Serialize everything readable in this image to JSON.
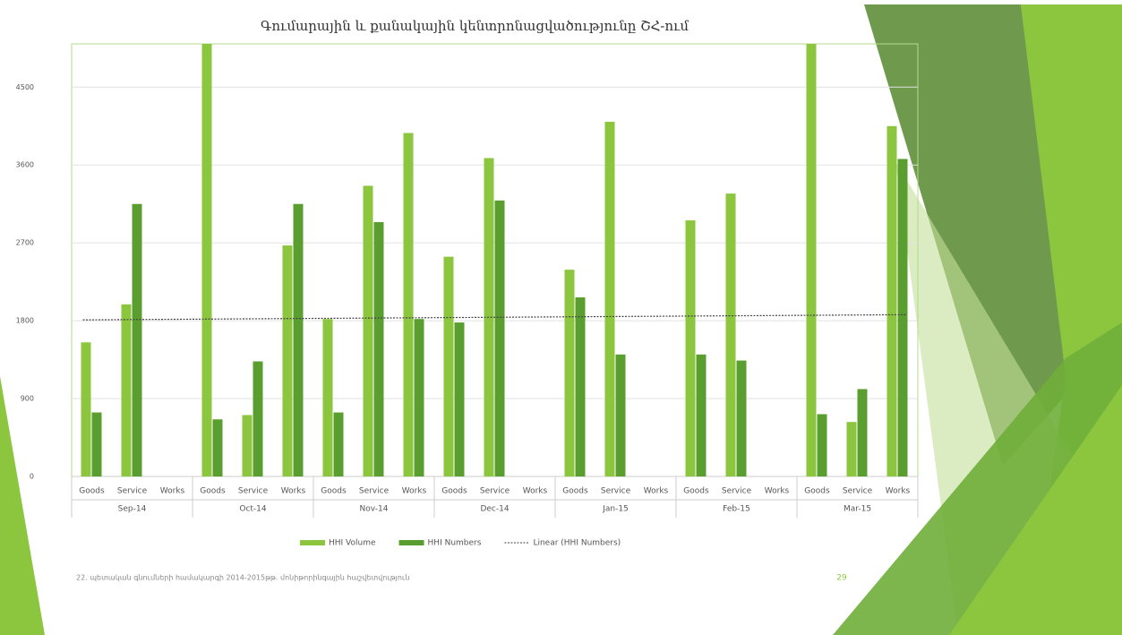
{
  "chart_data": {
    "type": "bar",
    "title": "Գումարային և քանակային կենտրոնացվածությունը ՇՀ-ում",
    "categories": [
      "Goods",
      "Service",
      "Works",
      "Goods",
      "Service",
      "Works",
      "Goods",
      "Service",
      "Works",
      "Goods",
      "Service",
      "Works",
      "Goods",
      "Service",
      "Works",
      "Goods",
      "Service",
      "Works",
      "Goods",
      "Service",
      "Works"
    ],
    "groups": [
      "Sep-14",
      "Oct-14",
      "Nov-14",
      "Dec-14",
      "Jan-15",
      "Feb-15",
      "Mar-15"
    ],
    "series": [
      {
        "name": "HHI Volume",
        "color": "#8cc63f",
        "values": [
          1550,
          1990,
          null,
          5000,
          710,
          2670,
          1820,
          3360,
          3970,
          2540,
          3680,
          null,
          2390,
          4100,
          null,
          2960,
          3270,
          null,
          5000,
          630,
          4050
        ]
      },
      {
        "name": "HHI Numbers",
        "color": "#5a9e2f",
        "values": [
          740,
          3150,
          null,
          660,
          1330,
          3150,
          740,
          2940,
          1820,
          1780,
          3190,
          null,
          2070,
          1410,
          null,
          1410,
          1340,
          null,
          720,
          1010,
          3670
        ]
      }
    ],
    "trendline": {
      "name": "Linear (HHI Numbers)",
      "values": [
        1810,
        1870
      ]
    },
    "ylim": [
      0,
      5000
    ],
    "yticks": [
      0,
      900,
      1800,
      2700,
      3600,
      4500
    ],
    "grid": true,
    "footer": "22. պետական գնումների համակարգի 2014-2015թթ. մոնիթորինգային հաշվետվություն",
    "page_number": "29"
  }
}
